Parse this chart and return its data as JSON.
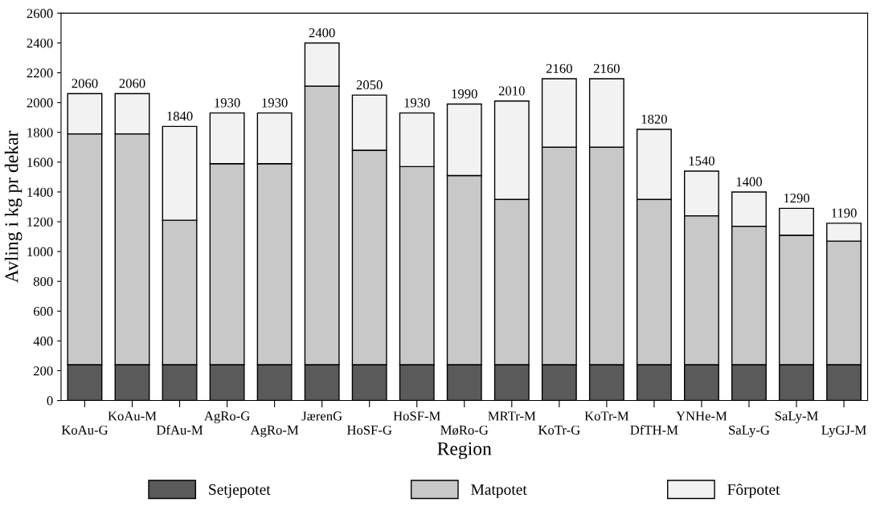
{
  "chart_data": {
    "type": "bar",
    "stacked": true,
    "xlabel": "Region",
    "ylabel": "Avling i kg pr dekar",
    "categories": [
      "KoAu-G",
      "KoAu-M",
      "DfAu-M",
      "AgRo-G",
      "AgRo-M",
      "JærenG",
      "HoSF-G",
      "HoSF-M",
      "MøRo-G",
      "MRTr-M",
      "KoTr-G",
      "KoTr-M",
      "DfTH-M",
      "YNHe-M",
      "SaLy-G",
      "SaLy-M",
      "LyGJ-M"
    ],
    "series": [
      {
        "name": "Setjepotet",
        "color": "#5a5a5a",
        "values": [
          240,
          240,
          240,
          240,
          240,
          240,
          240,
          240,
          240,
          240,
          240,
          240,
          240,
          240,
          240,
          240,
          240
        ]
      },
      {
        "name": "Matpotet",
        "color": "#c8c8c8",
        "values": [
          1550,
          1550,
          970,
          1350,
          1350,
          1870,
          1440,
          1330,
          1270,
          1110,
          1460,
          1460,
          1110,
          1000,
          930,
          870,
          830
        ]
      },
      {
        "name": "Fôrpotet",
        "color": "#f2f2f2",
        "values": [
          270,
          270,
          630,
          340,
          340,
          290,
          370,
          360,
          480,
          660,
          460,
          460,
          470,
          300,
          230,
          180,
          120
        ]
      }
    ],
    "totals": [
      "2060",
      "2060",
      "1840",
      "1930",
      "1930",
      "2400",
      "2050",
      "1930",
      "1990",
      "2010",
      "2160",
      "2160",
      "1820",
      "1540",
      "1400",
      "1290",
      "1190"
    ],
    "ylim": [
      0,
      2600
    ],
    "yticks": [
      0,
      200,
      400,
      600,
      800,
      1000,
      1200,
      1400,
      1600,
      1800,
      2000,
      2200,
      2400,
      2600
    ],
    "grid": false,
    "legend": "bottom"
  }
}
